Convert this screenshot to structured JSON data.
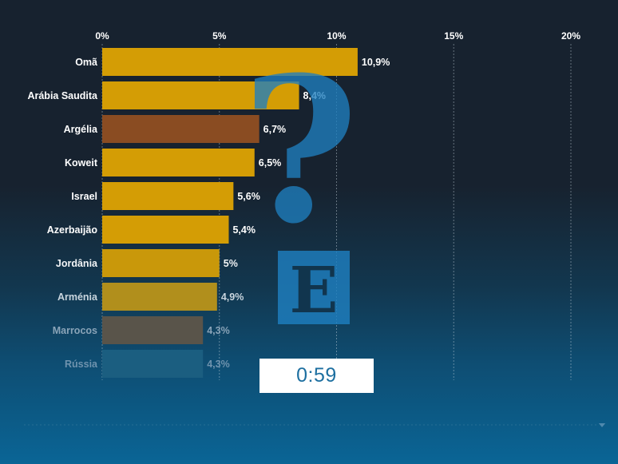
{
  "chart_data": {
    "type": "bar",
    "orientation": "horizontal",
    "categories": [
      "Omã",
      "Arábia Saudita",
      "Argélia",
      "Koweit",
      "Israel",
      "Azerbaijão",
      "Jordânia",
      "Arménia",
      "Marrocos",
      "Rússia"
    ],
    "values": [
      10.9,
      8.4,
      6.7,
      6.5,
      5.6,
      5.4,
      5,
      4.9,
      4.3,
      4.3
    ],
    "value_labels": [
      "10,9%",
      "8,4%",
      "6,7%",
      "6,5%",
      "5,6%",
      "5,4%",
      "5%",
      "4,9%",
      "4,3%",
      "4,3%"
    ],
    "bar_colors": [
      "#d49d05",
      "#d49d05",
      "#8a4c22",
      "#d49d05",
      "#d49d05",
      "#d49d05",
      "#c9980a",
      "#b18f1c",
      "#59544a",
      "#1b5e80"
    ],
    "label_colors": [
      "#ffffff",
      "#ffffff",
      "#ffffff",
      "#ffffff",
      "#ffffff",
      "#ffffff",
      "#f2f4f6",
      "#c9d5de",
      "#8aa4b8",
      "#6f93ae"
    ],
    "xticks": [
      0,
      5,
      10,
      15,
      20
    ],
    "xtick_labels": [
      "0%",
      "5%",
      "10%",
      "15%",
      "20%"
    ],
    "xlim": [
      0,
      20
    ],
    "grid": true,
    "title": "",
    "xlabel": "",
    "ylabel": ""
  },
  "overlay": {
    "timer": "0:59",
    "logo_letter": "E",
    "logo_glyph": "?"
  },
  "colors": {
    "logo_blue": "#1f7fbf",
    "timer_text": "#1d6fa0"
  }
}
